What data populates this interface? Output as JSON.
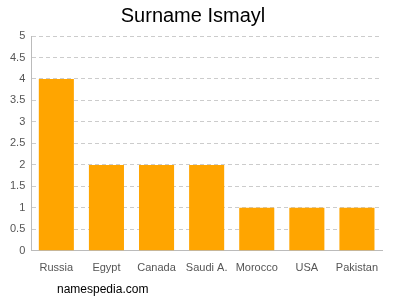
{
  "chart_data": {
    "type": "bar",
    "title": "Surname Ismayl",
    "categories": [
      "Russia",
      "Egypt",
      "Canada",
      "Saudi A.",
      "Morocco",
      "USA",
      "Pakistan"
    ],
    "values": [
      4,
      2,
      2,
      2,
      1,
      1,
      1
    ],
    "color": "#ffa500",
    "ylim": [
      0,
      5
    ],
    "yticks": [
      0,
      0.5,
      1,
      1.5,
      2,
      2.5,
      3,
      3.5,
      4,
      4.5,
      5
    ],
    "grid": true,
    "annotations": [
      "namespedia.com"
    ]
  }
}
